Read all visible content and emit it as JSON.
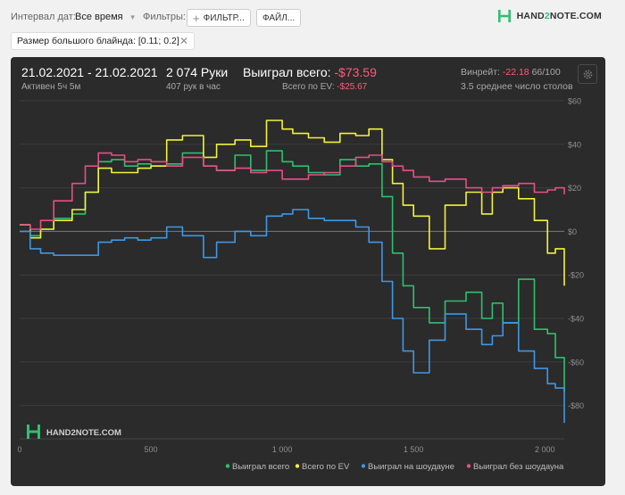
{
  "toolbar": {
    "date_interval_label": "Интервал дат:",
    "date_interval_value": "Все время",
    "filters_label": "Фильтры:",
    "filter_button": "ФИЛЬТР...",
    "file_button": "ФАЙЛ...",
    "active_filter_chip": "Размер большого блайнда: [0.11; 0.2]"
  },
  "logo": {
    "part1": "HAND",
    "num": "2",
    "part2": "NOTE.COM"
  },
  "summary": {
    "date_range": "21.02.2021 - 21.02.2021",
    "active_time": "Активен 5ч 5м",
    "hands": "2 074 Руки",
    "hands_per_hour": "407 рук в час",
    "won_total_label": "Выиграл всего:",
    "won_total_value": "-$73.59",
    "ev_total_label": "Всего по EV:",
    "ev_total_value": "-$25.67",
    "winrate_label": "Винрейт:",
    "winrate_value": "-22.18",
    "winrate_hands": "66/100",
    "avg_tables": "3.5 среднее число столов"
  },
  "colors": {
    "won": "#2ec06f",
    "ev": "#f2f23a",
    "showdown": "#3f97e6",
    "non_showdown": "#e64f86",
    "negative_text": "#ff5a7a"
  },
  "chart_data": {
    "type": "line",
    "xlabel": "",
    "ylabel": "",
    "xlim": [
      0,
      2074
    ],
    "ylim": [
      -90,
      60
    ],
    "x_ticks": [
      0,
      500,
      1000,
      1500,
      2000
    ],
    "x_tick_labels": [
      "0",
      "500",
      "1 000",
      "1 500",
      "2 000"
    ],
    "y_ticks": [
      60,
      40,
      20,
      0,
      -20,
      -40,
      -60,
      -80
    ],
    "y_tick_labels": [
      "$60",
      "$40",
      "$20",
      "$0",
      "-$20",
      "-$40",
      "-$60",
      "-$80"
    ],
    "grid": true,
    "legend_position": "bottom-right",
    "watermark": "HAND2NOTE.COM",
    "series": [
      {
        "name": "Выиграл всего",
        "color": "#2ec06f",
        "x": [
          0,
          40,
          80,
          130,
          200,
          250,
          300,
          350,
          400,
          450,
          500,
          560,
          620,
          700,
          750,
          820,
          880,
          940,
          1000,
          1040,
          1100,
          1160,
          1220,
          1280,
          1330,
          1380,
          1420,
          1460,
          1500,
          1560,
          1620,
          1700,
          1760,
          1800,
          1840,
          1900,
          1960,
          2010,
          2040,
          2074
        ],
        "y": [
          3,
          -2,
          1,
          6,
          8,
          18,
          32,
          33,
          30,
          31,
          30,
          31,
          36,
          30,
          28,
          35,
          28,
          37,
          32,
          30,
          27,
          26,
          33,
          30,
          31,
          16,
          -10,
          -25,
          -35,
          -42,
          -32,
          -28,
          -40,
          -33,
          -42,
          -22,
          -45,
          -47,
          -58,
          -74
        ]
      },
      {
        "name": "Всего по EV",
        "color": "#f2f23a",
        "x": [
          0,
          40,
          80,
          130,
          200,
          250,
          300,
          350,
          400,
          450,
          500,
          560,
          620,
          700,
          750,
          820,
          880,
          940,
          1000,
          1040,
          1100,
          1160,
          1220,
          1280,
          1330,
          1380,
          1420,
          1460,
          1500,
          1560,
          1620,
          1700,
          1760,
          1800,
          1840,
          1900,
          1960,
          2010,
          2040,
          2074
        ],
        "y": [
          3,
          -3,
          1,
          5,
          10,
          18,
          29,
          27,
          27,
          29,
          30,
          42,
          44,
          34,
          40,
          42,
          39,
          51,
          47,
          45,
          43,
          41,
          45,
          44,
          47,
          33,
          22,
          12,
          7,
          -8,
          12,
          18,
          8,
          18,
          20,
          15,
          5,
          -10,
          -8,
          -25
        ]
      },
      {
        "name": "Выиграл на шоудауне",
        "color": "#3f97e6",
        "x": [
          0,
          40,
          80,
          130,
          200,
          250,
          300,
          350,
          400,
          450,
          500,
          560,
          620,
          700,
          750,
          820,
          880,
          940,
          1000,
          1040,
          1100,
          1160,
          1220,
          1280,
          1330,
          1380,
          1420,
          1460,
          1500,
          1560,
          1620,
          1700,
          1760,
          1800,
          1840,
          1900,
          1960,
          2010,
          2040,
          2074
        ],
        "y": [
          0,
          -8,
          -10,
          -11,
          -11,
          -11,
          -5,
          -4,
          -3,
          -4,
          -3,
          2,
          -2,
          -12,
          -5,
          0,
          -2,
          7,
          8,
          10,
          6,
          5,
          5,
          2,
          -5,
          -23,
          -40,
          -55,
          -65,
          -50,
          -38,
          -45,
          -52,
          -48,
          -42,
          -55,
          -63,
          -70,
          -72,
          -88
        ]
      },
      {
        "name": "Выиграл без шоудауна",
        "color": "#e64f86",
        "x": [
          0,
          40,
          80,
          130,
          200,
          250,
          300,
          350,
          400,
          450,
          500,
          560,
          620,
          700,
          750,
          820,
          880,
          940,
          1000,
          1040,
          1100,
          1160,
          1220,
          1280,
          1330,
          1380,
          1420,
          1460,
          1500,
          1560,
          1620,
          1700,
          1760,
          1800,
          1840,
          1900,
          1960,
          2010,
          2040,
          2074
        ],
        "y": [
          3,
          1,
          5,
          14,
          22,
          30,
          36,
          35,
          32,
          33,
          32,
          30,
          34,
          30,
          28,
          29,
          27,
          28,
          24,
          24,
          26,
          27,
          30,
          34,
          35,
          32,
          30,
          28,
          25,
          23,
          24,
          20,
          18,
          20,
          21,
          22,
          18,
          19,
          20,
          17
        ]
      }
    ]
  }
}
